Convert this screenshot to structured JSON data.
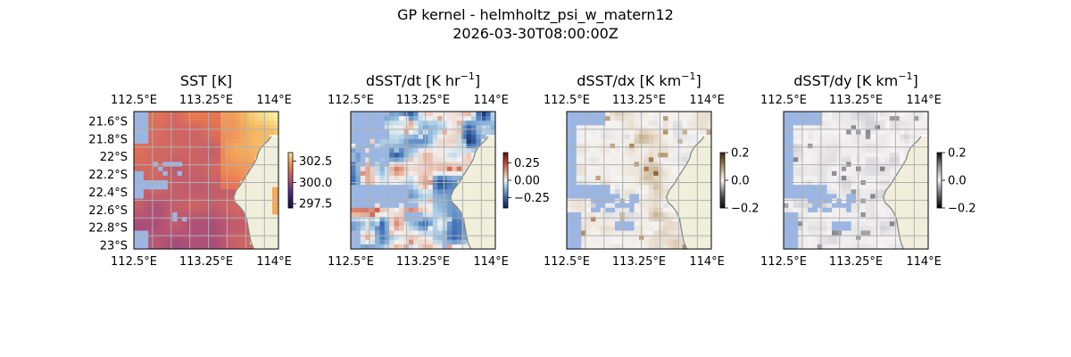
{
  "figure": {
    "title": "GP kernel - helmholtz_psi_w_matern12",
    "subtitle": "2026-03-30T08:00:00Z"
  },
  "colors": {
    "ocean_mask": "#9bb6e2",
    "land": "#efefdb",
    "coastline": "#888888",
    "grid": "#b0b0b0"
  },
  "chart_data": [
    {
      "type": "heatmap",
      "title_main": "SST [K]",
      "title_sup": "",
      "title_tail": "",
      "x_ticks": [
        "112.5°E",
        "113.25°E",
        "114°E"
      ],
      "x_range": [
        112.5,
        114.05
      ],
      "y_ticks": [
        "21.6°S",
        "21.8°S",
        "22°S",
        "22.2°S",
        "22.4°S",
        "22.6°S",
        "22.8°S",
        "23°S"
      ],
      "y_range": [
        -21.5,
        -23.05
      ],
      "left_lat_labels": true,
      "colormap": "thermal",
      "colorbar_ticks": [
        "302.5",
        "300.0",
        "297.5"
      ],
      "colorbar_values": [
        302.5,
        300.0,
        297.5
      ],
      "colorbar_range": [
        297.0,
        303.5
      ],
      "grid": true,
      "legend": "none"
    },
    {
      "type": "heatmap",
      "title_main": "dSST/dt [K hr",
      "title_sup": "−1",
      "title_tail": "]",
      "x_ticks": [
        "112.5°E",
        "113.25°E",
        "114°E"
      ],
      "x_range": [
        112.5,
        114.05
      ],
      "y_range": [
        -21.5,
        -23.05
      ],
      "left_lat_labels": false,
      "colormap": "balance",
      "colorbar_ticks": [
        "0.25",
        "0.00",
        "−0.25"
      ],
      "colorbar_values": [
        0.25,
        0.0,
        -0.25
      ],
      "colorbar_range": [
        -0.4,
        0.4
      ],
      "grid": true,
      "legend": "none"
    },
    {
      "type": "heatmap",
      "title_main": "dSST/dx [K km",
      "title_sup": "−1",
      "title_tail": "]",
      "x_ticks": [
        "112.5°E",
        "113.25°E",
        "114°E"
      ],
      "x_range": [
        112.5,
        114.05
      ],
      "y_range": [
        -21.5,
        -23.05
      ],
      "left_lat_labels": false,
      "colormap": "brown",
      "colorbar_ticks": [
        "0.2",
        "0.0",
        "−0.2"
      ],
      "colorbar_values": [
        0.2,
        0.0,
        -0.2
      ],
      "colorbar_range": [
        -0.2,
        0.2
      ],
      "grid": true,
      "legend": "none"
    },
    {
      "type": "heatmap",
      "title_main": "dSST/dy [K km",
      "title_sup": "−1",
      "title_tail": "]",
      "x_ticks": [
        "112.5°E",
        "113.25°E",
        "114°E"
      ],
      "x_range": [
        112.5,
        114.05
      ],
      "y_range": [
        -21.5,
        -23.05
      ],
      "left_lat_labels": false,
      "colormap": "gray",
      "colorbar_ticks": [
        "0.2",
        "0.0",
        "−0.2"
      ],
      "colorbar_values": [
        0.2,
        0.0,
        -0.2
      ],
      "colorbar_range": [
        -0.2,
        0.2
      ],
      "grid": true,
      "legend": "none"
    }
  ]
}
